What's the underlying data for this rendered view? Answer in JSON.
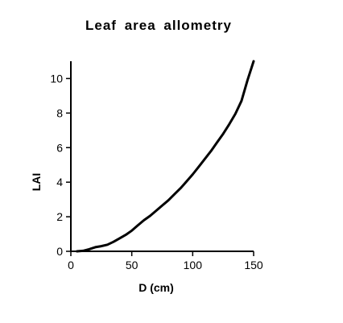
{
  "chart_data": {
    "type": "line",
    "title": "Leaf area allometry",
    "xlabel": "D (cm)",
    "ylabel": "LAI",
    "xlim": [
      0,
      150
    ],
    "ylim": [
      0,
      11
    ],
    "xticks": [
      0,
      50,
      100,
      150
    ],
    "yticks": [
      0,
      2,
      4,
      6,
      8,
      10
    ],
    "grid": false,
    "legend": "none",
    "series": [
      {
        "color": "#000000",
        "x": [
          5,
          10,
          15,
          20,
          25,
          30,
          35,
          40,
          45,
          50,
          55,
          60,
          65,
          70,
          75,
          80,
          85,
          90,
          95,
          100,
          105,
          110,
          115,
          120,
          125,
          130,
          135,
          140,
          145,
          150
        ],
        "y": [
          0.0,
          0.03,
          0.12,
          0.24,
          0.3,
          0.38,
          0.55,
          0.75,
          0.95,
          1.2,
          1.5,
          1.8,
          2.05,
          2.35,
          2.65,
          2.95,
          3.3,
          3.65,
          4.05,
          4.45,
          4.9,
          5.35,
          5.8,
          6.3,
          6.8,
          7.35,
          7.95,
          8.7,
          9.9,
          11.0
        ]
      }
    ]
  }
}
